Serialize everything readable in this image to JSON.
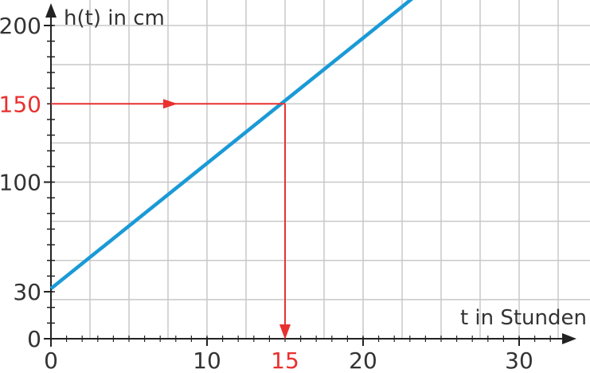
{
  "chart_data": {
    "type": "line",
    "xlabel": "t in Stunden",
    "ylabel": "h(t) in cm",
    "xlim": [
      0,
      34
    ],
    "ylim": [
      0,
      203
    ],
    "x_ticks": [
      0,
      10,
      20,
      30
    ],
    "y_ticks": [
      0,
      30,
      100,
      200
    ],
    "grid": true,
    "series": [
      {
        "color": "#1a9ad6",
        "x": [
          0,
          23.5
        ],
        "y": [
          32,
          220
        ],
        "slope": 8,
        "intercept": 32
      }
    ],
    "annotation": {
      "x": 15,
      "y": 150,
      "x_label": "15",
      "y_label": "150",
      "color": "#e8312f"
    }
  }
}
